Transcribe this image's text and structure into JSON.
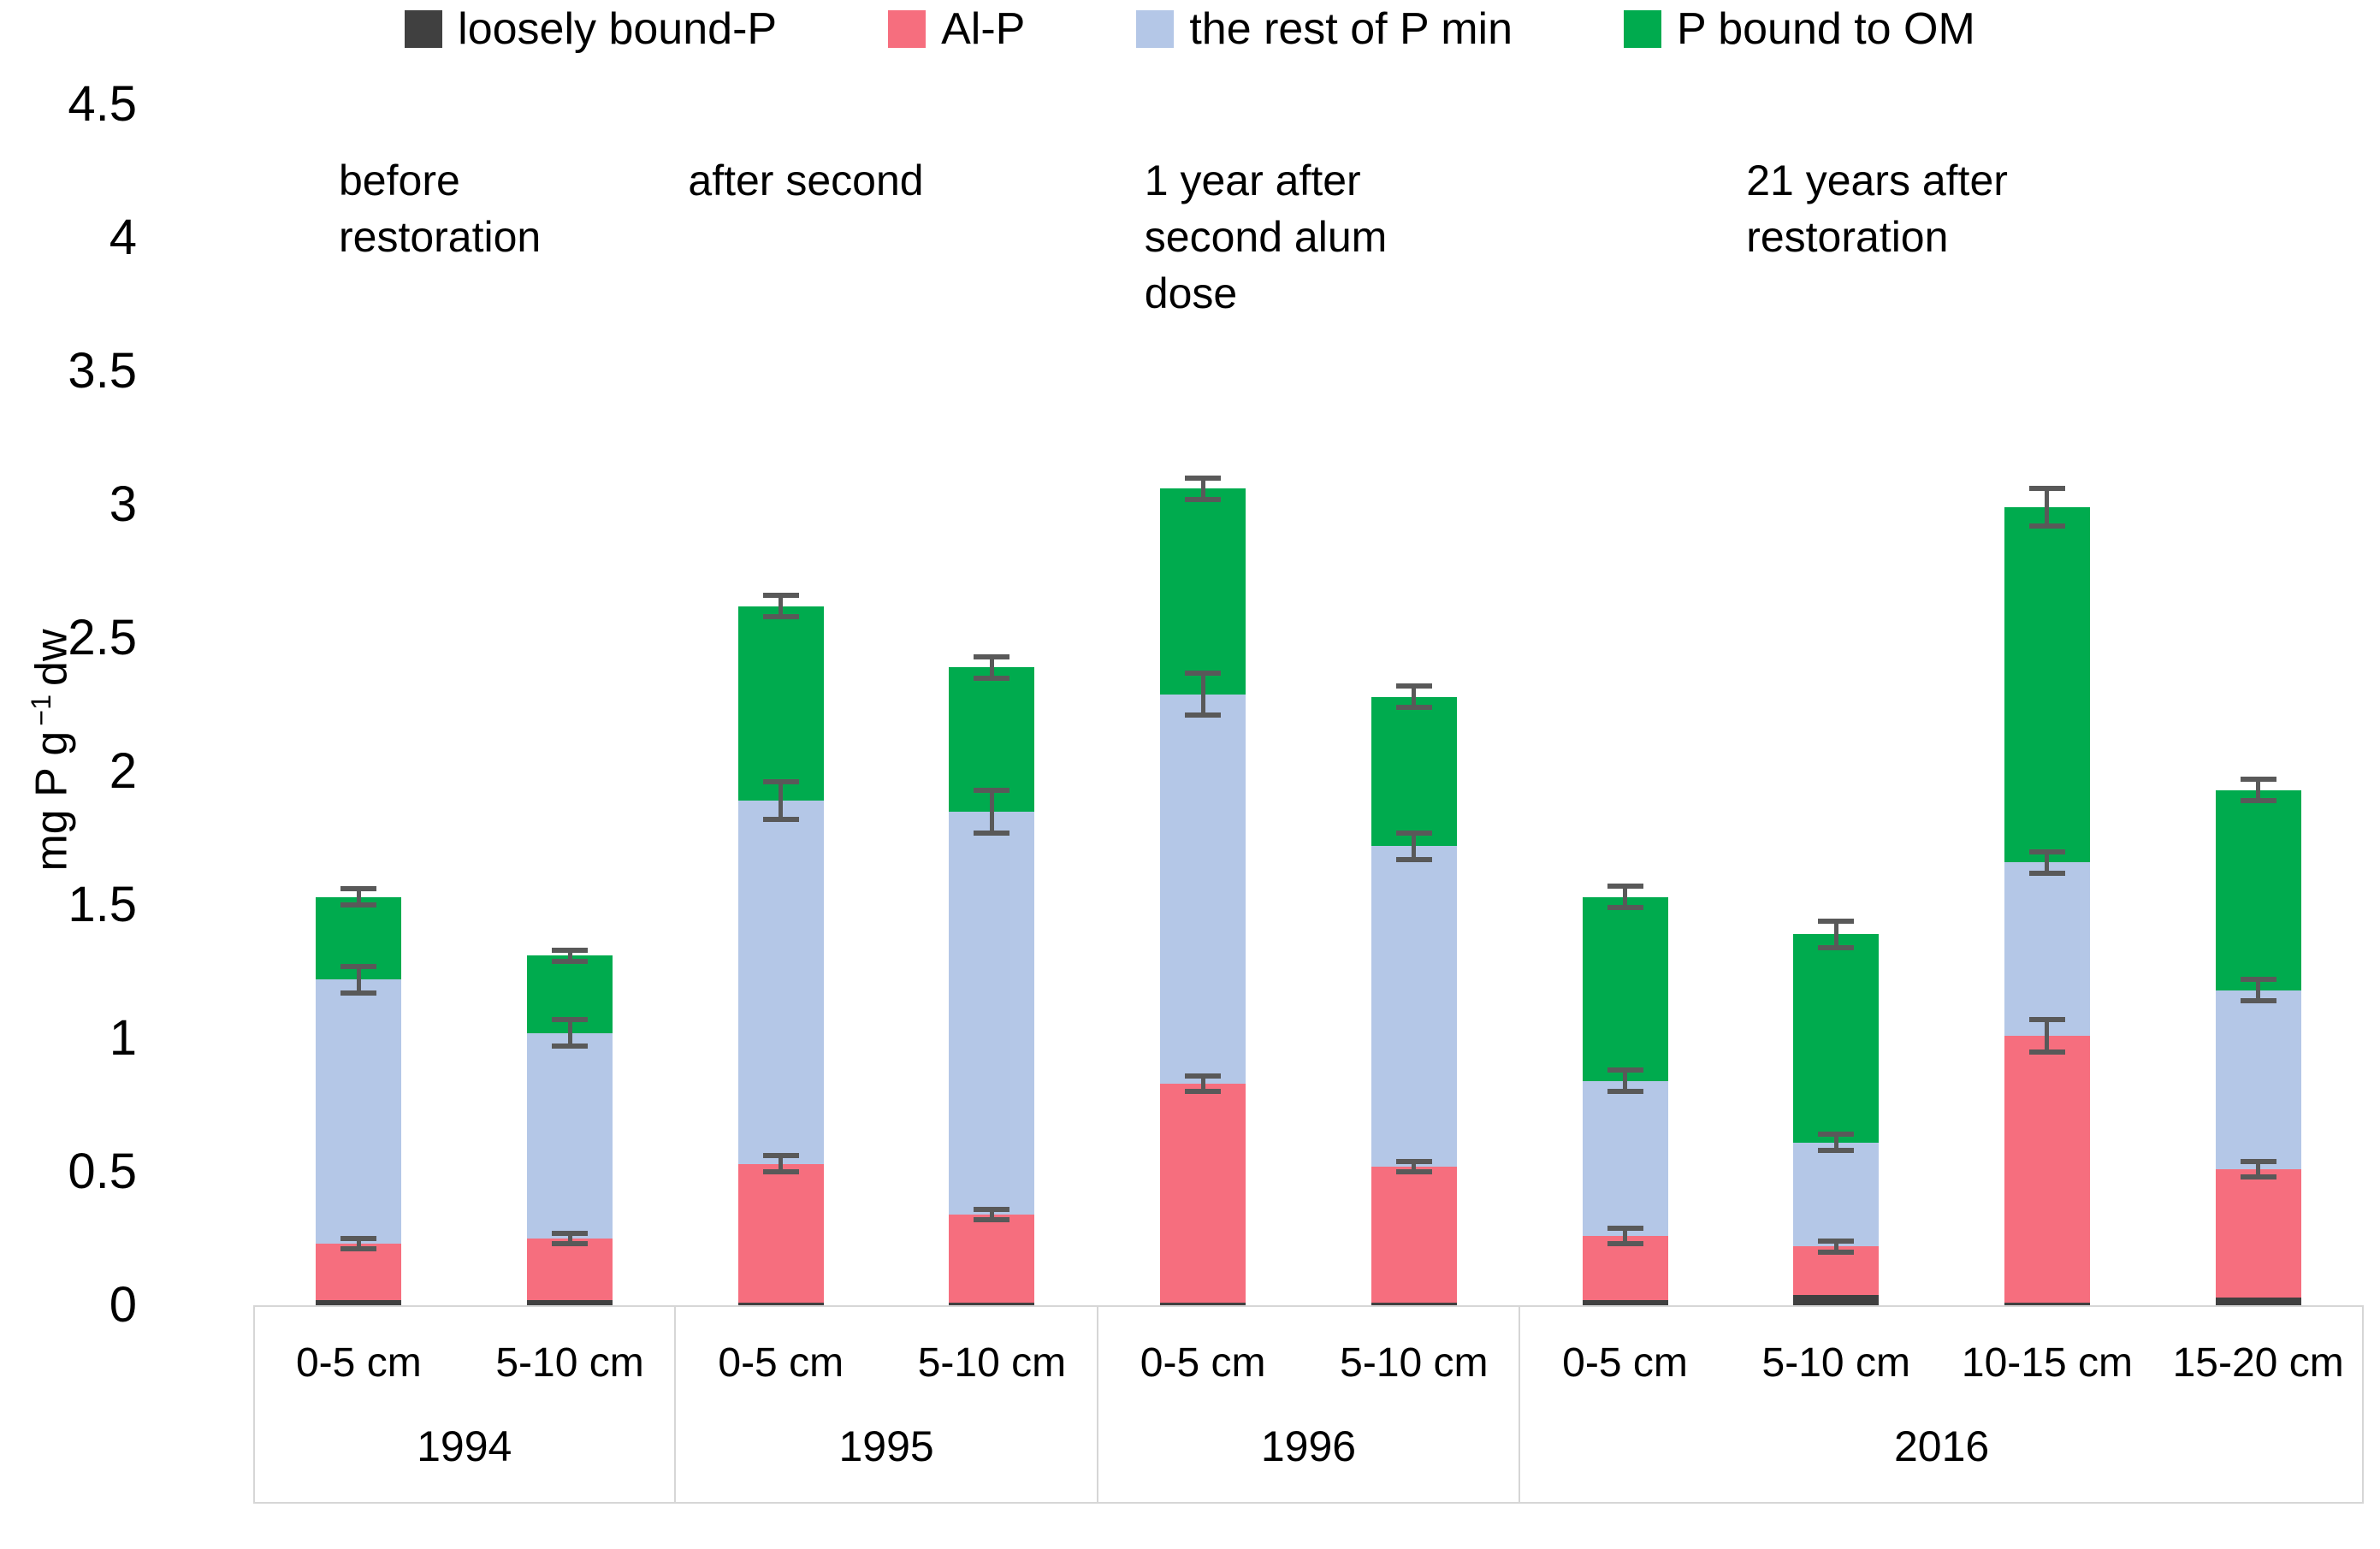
{
  "chart_data": {
    "type": "bar",
    "stacked": true,
    "title": "",
    "ylabel": {
      "pre": "mg P g",
      "sup": "−1",
      "post": "dw"
    },
    "ylim": [
      0,
      4.5
    ],
    "yticks": {
      "values": [
        4.5,
        4,
        3.5,
        3,
        2.5,
        2,
        1.5,
        1,
        0.5,
        0
      ],
      "labels": [
        "4.5",
        "4",
        "3.5",
        "3",
        "2.5",
        "2",
        "1.5",
        "1",
        "0.5",
        "0"
      ]
    },
    "grid": false,
    "legend_position": "top",
    "series": [
      {
        "name": "loosely bound-P",
        "color": "#404040"
      },
      {
        "name": "Al-P",
        "color": "#F66E7E"
      },
      {
        "name": "the rest of P min",
        "color": "#B4C7E7"
      },
      {
        "name": "P bound to OM",
        "color": "#00AB4E"
      }
    ],
    "error_bar_color": "#595959",
    "groups": [
      {
        "year": "1994",
        "annotation_lines": [
          "before",
          "restoration"
        ],
        "bars": [
          {
            "label": "0-5 cm",
            "segments": [
              0.02,
              0.21,
              0.99,
              0.31
            ],
            "errors": [
              0.02,
              0.05,
              0.03
            ]
          },
          {
            "label": "5-10 cm",
            "segments": [
              0.02,
              0.23,
              0.77,
              0.29
            ],
            "errors": [
              0.02,
              0.05,
              0.02
            ]
          }
        ]
      },
      {
        "year": "1995",
        "annotation_lines": [
          "after second"
        ],
        "bars": [
          {
            "label": "0-5 cm",
            "segments": [
              0.01,
              0.52,
              1.36,
              0.73
            ],
            "errors": [
              0.03,
              0.07,
              0.04
            ]
          },
          {
            "label": "5-10 cm",
            "segments": [
              0.01,
              0.33,
              1.51,
              0.54
            ],
            "errors": [
              0.02,
              0.08,
              0.04
            ]
          }
        ]
      },
      {
        "year": "1996",
        "annotation_lines": [
          "1 year after",
          "second alum",
          "dose"
        ],
        "bars": [
          {
            "label": "0-5 cm",
            "segments": [
              0.01,
              0.82,
              1.46,
              0.77
            ],
            "errors": [
              0.03,
              0.08,
              0.04
            ]
          },
          {
            "label": "5-10 cm",
            "segments": [
              0.01,
              0.51,
              1.2,
              0.56
            ],
            "errors": [
              0.02,
              0.05,
              0.04
            ]
          }
        ]
      },
      {
        "year": "2016",
        "annotation_lines": [
          "21 years after",
          "restoration"
        ],
        "bars": [
          {
            "label": "0-5 cm",
            "segments": [
              0.02,
              0.24,
              0.58,
              0.69
            ],
            "errors": [
              0.03,
              0.04,
              0.04
            ]
          },
          {
            "label": "5-10 cm",
            "segments": [
              0.04,
              0.18,
              0.39,
              0.78
            ],
            "errors": [
              0.02,
              0.03,
              0.05
            ]
          },
          {
            "label": "10-15 cm",
            "segments": [
              0.01,
              1.0,
              0.65,
              1.33
            ],
            "errors": [
              0.06,
              0.04,
              0.07
            ]
          },
          {
            "label": "15-20 cm",
            "segments": [
              0.03,
              0.48,
              0.67,
              0.75
            ],
            "errors": [
              0.03,
              0.04,
              0.04
            ]
          }
        ]
      }
    ]
  }
}
